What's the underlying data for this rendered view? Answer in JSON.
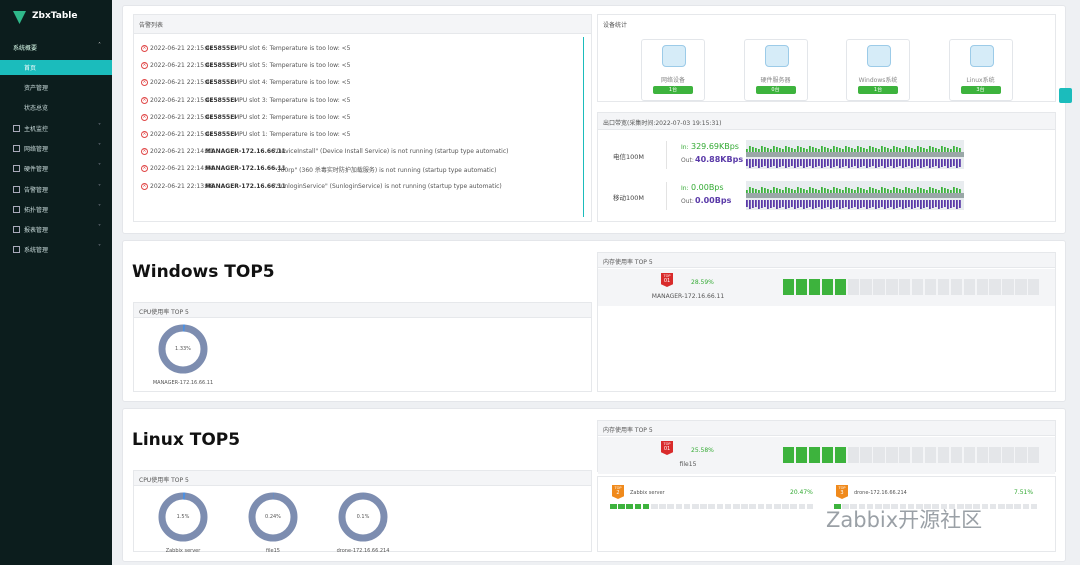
{
  "sidebar": {
    "logo": "ZbxTable",
    "group": "系统概要",
    "submenu": [
      "首页",
      "资产管理",
      "状态总览"
    ],
    "menu": [
      "主机监控",
      "网络管理",
      "硬件管理",
      "告警管理",
      "拓扑管理",
      "报表管理",
      "系统管理"
    ]
  },
  "alerts": {
    "title": "告警列表",
    "items": [
      {
        "time": "2022-06-21 22:15:41",
        "host": "CE5855EI",
        "message": "MPU slot 6: Temperature is too low: <5"
      },
      {
        "time": "2022-06-21 22:15:41",
        "host": "CE5855EI",
        "message": "MPU slot 5: Temperature is too low: <5"
      },
      {
        "time": "2022-06-21 22:15:41",
        "host": "CE5855EI",
        "message": "MPU slot 4: Temperature is too low: <5"
      },
      {
        "time": "2022-06-21 22:15:41",
        "host": "CE5855EI",
        "message": "MPU slot 3: Temperature is too low: <5"
      },
      {
        "time": "2022-06-21 22:15:41",
        "host": "CE5855EI",
        "message": "MPU slot 2: Temperature is too low: <5"
      },
      {
        "time": "2022-06-21 22:15:41",
        "host": "CE5855EI",
        "message": "MPU slot 1: Temperature is too low: <5"
      },
      {
        "time": "2022-06-21 22:14:11",
        "host": "MANAGER-172.16.66.11",
        "message": "\"DeviceInstall\" (Device Install Service) is not running (startup type automatic)"
      },
      {
        "time": "2022-06-21 22:14:04",
        "host": "MANAGER-172.16.66.11",
        "message": "\"360rp\" (360 杀毒实时防护加载服务) is not running (startup type automatic)"
      },
      {
        "time": "2022-06-21 22:13:08",
        "host": "MANAGER-172.16.66.11",
        "message": "\"SunloginService\" (SunloginService) is not running (startup type automatic)"
      }
    ]
  },
  "devices": {
    "title": "设备统计",
    "items": [
      {
        "label": "网络设备",
        "count": "1台"
      },
      {
        "label": "硬件服务器",
        "count": "0台"
      },
      {
        "label": "Windows系统",
        "count": "1台"
      },
      {
        "label": "Linux系统",
        "count": "3台"
      }
    ]
  },
  "bandwidth": {
    "title": "出口带宽(采集时间:2022-07-03 19:15:31)",
    "in_label": "In:",
    "out_label": "Out:",
    "lines": [
      {
        "name": "电信100M",
        "in": "329.69KBps",
        "out": "40.88KBps"
      },
      {
        "name": "移动100M",
        "in": "0.00Bps",
        "out": "0.00Bps"
      }
    ]
  },
  "badge_text": "TOP",
  "windows": {
    "title": "Windows TOP5",
    "cpu_title": "CPU使用率 TOP 5",
    "cpu": [
      {
        "value": 1.33,
        "label": "1.33%",
        "host": "MANAGER-172.16.66.11"
      }
    ],
    "mem_title": "内存使用率 TOP 5",
    "mem": [
      {
        "rank": "01",
        "value": 28.59,
        "label": "28.59%",
        "host": "MANAGER-172.16.66.11"
      }
    ]
  },
  "linux": {
    "title": "Linux TOP5",
    "cpu_title": "CPU使用率 TOP 5",
    "cpu": [
      {
        "value": 1.5,
        "label": "1.5%",
        "host": "Zabbix server"
      },
      {
        "value": 0.24,
        "label": "0.24%",
        "host": "file15"
      },
      {
        "value": 0.1,
        "label": "0.1%",
        "host": "drone-172.16.66.214"
      }
    ],
    "mem_title": "内存使用率 TOP 5",
    "mem": [
      {
        "rank": "01",
        "value": 25.58,
        "label": "25.58%",
        "host": "file15"
      }
    ],
    "mem_more": [
      {
        "rank": "2",
        "value": 20.47,
        "label": "20.47%",
        "host": "Zabbix server"
      },
      {
        "rank": "3",
        "value": 7.51,
        "label": "7.51%",
        "host": "drone-172.16.66.214"
      }
    ]
  },
  "watermark": "Zabbix开源社区"
}
